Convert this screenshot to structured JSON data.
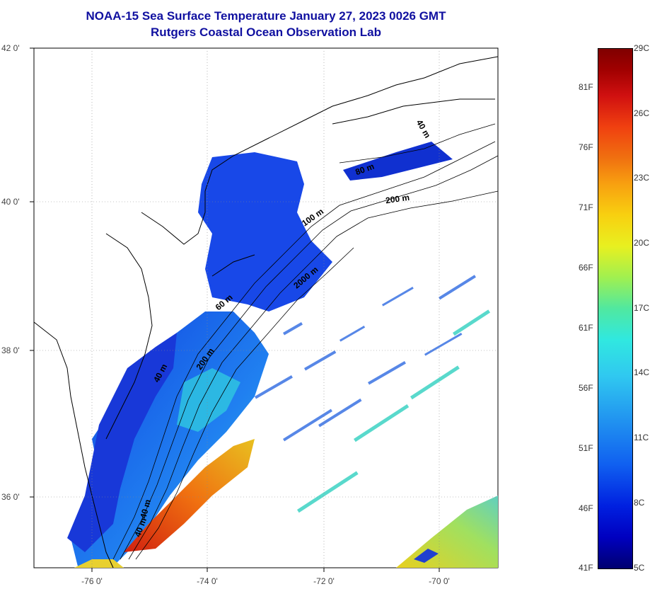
{
  "title": {
    "line1": "NOAA-15 Sea Surface Temperature January 27, 2023 0026 GMT",
    "line2": "Rutgers Coastal Ocean Observation Lab"
  },
  "map": {
    "lat_labels": [
      "42 0'",
      "40 0'",
      "38 0'",
      "36 0'"
    ],
    "lon_labels": [
      "-76 0'",
      "-74 0'",
      "-72 0'",
      "-70 0'"
    ],
    "contour_labels": [
      "40 m",
      "80 m",
      "200 m",
      "100 m",
      "2000 m",
      "60 m",
      "200 m",
      "40 m",
      "40 m",
      "40 m"
    ]
  },
  "colorbar": {
    "fahrenheit_labels": [
      "81F",
      "76F",
      "71F",
      "66F",
      "61F",
      "56F",
      "51F",
      "46F",
      "41F"
    ],
    "celsius_labels": [
      "29C",
      "26C",
      "23C",
      "20C",
      "17C",
      "14C",
      "11C",
      "8C",
      "5C"
    ],
    "range_c": [
      5,
      29
    ],
    "colors": [
      "#000070",
      "#0000c0",
      "#1060f0",
      "#30c8f0",
      "#50e8a0",
      "#e8f020",
      "#f8a010",
      "#f04010",
      "#800000"
    ]
  }
}
